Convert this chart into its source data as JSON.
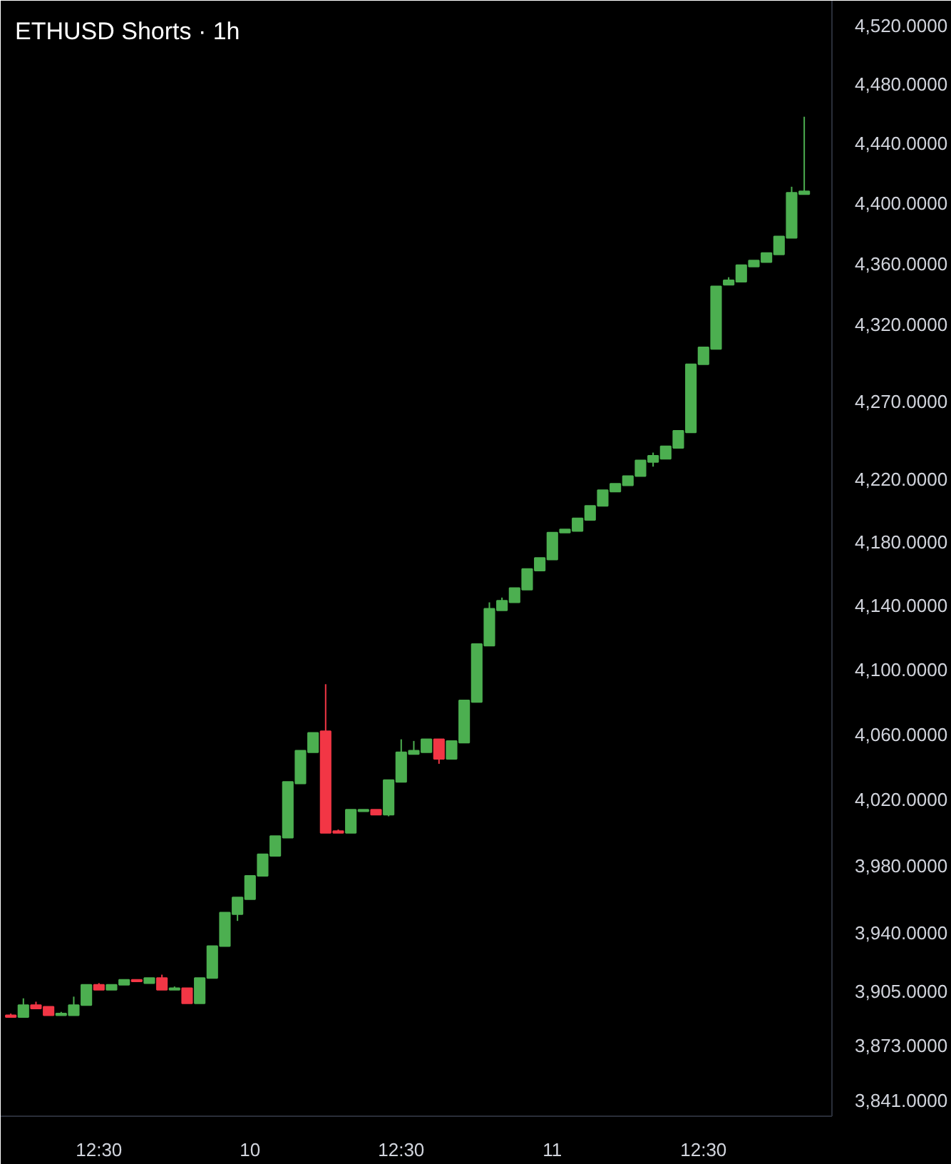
{
  "chart_data": {
    "type": "candlestick",
    "title": "ETHUSD Shorts · 1h",
    "categories": [
      null,
      null,
      null,
      null,
      null,
      null,
      null,
      "12:30",
      null,
      null,
      null,
      null,
      null,
      null,
      null,
      null,
      null,
      null,
      null,
      "10",
      null,
      null,
      null,
      null,
      null,
      null,
      null,
      null,
      null,
      null,
      null,
      "12:30",
      null,
      null,
      null,
      null,
      null,
      null,
      null,
      null,
      null,
      null,
      null,
      "11",
      null,
      null,
      null,
      null,
      null,
      null,
      null,
      null,
      null,
      null,
      null,
      "12:30",
      null,
      null,
      null,
      null,
      null,
      null,
      null,
      null
    ],
    "ohlc": [
      [
        3891,
        3892,
        3890,
        3890
      ],
      [
        3890,
        3901,
        3890,
        3897
      ],
      [
        3897,
        3899,
        3895,
        3895
      ],
      [
        3896,
        3896,
        3891,
        3891
      ],
      [
        3891,
        3893,
        3891,
        3892
      ],
      [
        3891,
        3902,
        3891,
        3897
      ],
      [
        3897,
        3909,
        3897,
        3909
      ],
      [
        3909,
        3910,
        3906,
        3906
      ],
      [
        3906,
        3909,
        3906,
        3909
      ],
      [
        3909,
        3912,
        3909,
        3912
      ],
      [
        3912,
        3912,
        3911,
        3911
      ],
      [
        3910,
        3913,
        3910,
        3913
      ],
      [
        3913,
        3915,
        3906,
        3906
      ],
      [
        3906,
        3908,
        3906,
        3907
      ],
      [
        3907,
        3907,
        3898,
        3898
      ],
      [
        3898,
        3913,
        3898,
        3913
      ],
      [
        3913,
        3932,
        3913,
        3932
      ],
      [
        3932,
        3952,
        3932,
        3952
      ],
      [
        3951,
        3961,
        3947,
        3961
      ],
      [
        3960,
        3974,
        3960,
        3974
      ],
      [
        3974,
        3987,
        3974,
        3987
      ],
      [
        3986,
        3998,
        3986,
        3998
      ],
      [
        3997,
        4031,
        3997,
        4031
      ],
      [
        4030,
        4050,
        4030,
        4050
      ],
      [
        4049,
        4061,
        4049,
        4061
      ],
      [
        4062,
        4091,
        4000,
        4000
      ],
      [
        4001,
        4002,
        4000,
        4000
      ],
      [
        4000,
        4014,
        4000,
        4014
      ],
      [
        4013,
        4014,
        4013,
        4014
      ],
      [
        4014,
        4014,
        4011,
        4011
      ],
      [
        4011,
        4032,
        4010,
        4032
      ],
      [
        4031,
        4057,
        4031,
        4049
      ],
      [
        4048,
        4056,
        4048,
        4050
      ],
      [
        4049,
        4057,
        4049,
        4057
      ],
      [
        4057,
        4057,
        4042,
        4045
      ],
      [
        4045,
        4056,
        4045,
        4056
      ],
      [
        4055,
        4081,
        4055,
        4081
      ],
      [
        4080,
        4116,
        4080,
        4116
      ],
      [
        4115,
        4142,
        4115,
        4138
      ],
      [
        4137,
        4145,
        4137,
        4143
      ],
      [
        4142,
        4151,
        4142,
        4151
      ],
      [
        4150,
        4163,
        4150,
        4163
      ],
      [
        4162,
        4170,
        4162,
        4170
      ],
      [
        4169,
        4186,
        4169,
        4186
      ],
      [
        4186,
        4188,
        4186,
        4188
      ],
      [
        4187,
        4195,
        4187,
        4195
      ],
      [
        4194,
        4203,
        4194,
        4203
      ],
      [
        4203,
        4213,
        4203,
        4213
      ],
      [
        4212,
        4217,
        4212,
        4217
      ],
      [
        4216,
        4222,
        4216,
        4222
      ],
      [
        4222,
        4232,
        4222,
        4232
      ],
      [
        4231,
        4237,
        4228,
        4235
      ],
      [
        4233,
        4241,
        4233,
        4241
      ],
      [
        4240,
        4251,
        4240,
        4251
      ],
      [
        4250,
        4294,
        4250,
        4294
      ],
      [
        4294,
        4305,
        4294,
        4305
      ],
      [
        4304,
        4345,
        4304,
        4345
      ],
      [
        4346,
        4351,
        4346,
        4349
      ],
      [
        4348,
        4359,
        4348,
        4359
      ],
      [
        4358,
        4362,
        4358,
        4362
      ],
      [
        4361,
        4367,
        4361,
        4367
      ],
      [
        4366,
        4378,
        4366,
        4378
      ],
      [
        4377,
        4411,
        4377,
        4407
      ],
      [
        4406,
        4458,
        4406,
        4408
      ]
    ],
    "colors": [
      "#f23645",
      "#4caf50",
      "#f23645",
      "#f23645",
      "#4caf50",
      "#4caf50",
      "#4caf50",
      "#f23645",
      "#4caf50",
      "#4caf50",
      "#f23645",
      "#4caf50",
      "#f23645",
      "#4caf50",
      "#f23645",
      "#4caf50",
      "#4caf50",
      "#4caf50",
      "#4caf50",
      "#4caf50",
      "#4caf50",
      "#4caf50",
      "#4caf50",
      "#4caf50",
      "#4caf50",
      "#f23645",
      "#f23645",
      "#4caf50",
      "#4caf50",
      "#f23645",
      "#4caf50",
      "#4caf50",
      "#4caf50",
      "#4caf50",
      "#f23645",
      "#4caf50",
      "#4caf50",
      "#4caf50",
      "#4caf50",
      "#4caf50",
      "#4caf50",
      "#4caf50",
      "#4caf50",
      "#4caf50",
      "#4caf50",
      "#4caf50",
      "#4caf50",
      "#4caf50",
      "#4caf50",
      "#4caf50",
      "#4caf50",
      "#4caf50",
      "#4caf50",
      "#4caf50",
      "#4caf50",
      "#4caf50",
      "#4caf50",
      "#4caf50",
      "#4caf50",
      "#4caf50",
      "#4caf50",
      "#4caf50",
      "#4caf50",
      "#4caf50"
    ],
    "ylim": [
      3832,
      4537
    ],
    "log": "y",
    "yticks": [
      {
        "value": 3841,
        "label": "3,841.0000"
      },
      {
        "value": 3873,
        "label": "3,873.0000"
      },
      {
        "value": 3905,
        "label": "3,905.0000"
      },
      {
        "value": 3940,
        "label": "3,940.0000"
      },
      {
        "value": 3980,
        "label": "3,980.0000"
      },
      {
        "value": 4020,
        "label": "4,020.0000"
      },
      {
        "value": 4060,
        "label": "4,060.0000"
      },
      {
        "value": 4100,
        "label": "4,100.0000"
      },
      {
        "value": 4140,
        "label": "4,140.0000"
      },
      {
        "value": 4180,
        "label": "4,180.0000"
      },
      {
        "value": 4220,
        "label": "4,220.0000"
      },
      {
        "value": 4270,
        "label": "4,270.0000"
      },
      {
        "value": 4320,
        "label": "4,320.0000"
      },
      {
        "value": 4360,
        "label": "4,360.0000"
      },
      {
        "value": 4400,
        "label": "4,400.0000"
      },
      {
        "value": 4440,
        "label": "4,440.0000"
      },
      {
        "value": 4480,
        "label": "4,480.0000"
      },
      {
        "value": 4520,
        "label": "4,520.0000"
      }
    ]
  }
}
